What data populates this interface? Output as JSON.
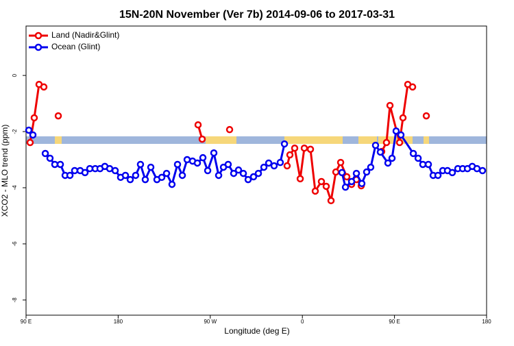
{
  "chart_data": {
    "type": "line",
    "title": "15N-20N November (Ver 7b)   2014-09-06 to 2017-03-31",
    "x_label": "Longitude (deg E)",
    "y_label": "XCO2 - MLO trend (ppm)",
    "xlim": [
      90,
      540
    ],
    "ylim": [
      -8.54,
      1.76
    ],
    "xticks": [
      {
        "value": 90,
        "label": "90 E"
      },
      {
        "value": 180,
        "label": "180"
      },
      {
        "value": 270,
        "label": "90 W"
      },
      {
        "value": 360,
        "label": "0"
      },
      {
        "value": 450,
        "label": "90 E"
      },
      {
        "value": 540,
        "label": "180"
      }
    ],
    "yticks": [
      0,
      -2,
      -4,
      -6,
      -8
    ],
    "legend": "top-left",
    "series": [
      {
        "name": "Land (Nadir&Glint)",
        "color": "#ee0000",
        "x": [
          94.0,
          98.0,
          102.7,
          107.4,
          null,
          121.5,
          null,
          258.1,
          262.1,
          null,
          288.9,
          null,
          345.1,
          347.8,
          352.5,
          357.9,
          361.9,
          367.9,
          372.6,
          378.6,
          383.3,
          388.0,
          392.7,
          397.4,
          403.4,
          408.1,
          412.8,
          417.5,
          null,
          437.5,
          442.2,
          445.6,
          455.0,
          458.3,
          463.0,
          467.7,
          null,
          481.1
        ],
        "values": [
          -2.39,
          -1.51,
          -0.32,
          -0.41,
          null,
          -1.44,
          null,
          -1.76,
          -2.27,
          null,
          -1.93,
          null,
          -3.22,
          -2.83,
          -2.59,
          -3.68,
          -2.59,
          -2.63,
          -4.12,
          -3.78,
          -3.95,
          -4.46,
          -3.44,
          -3.1,
          -3.61,
          -3.88,
          -3.71,
          -3.93,
          null,
          -2.71,
          -2.39,
          -1.07,
          -2.39,
          -1.51,
          -0.32,
          -0.41,
          null,
          -1.44
        ]
      },
      {
        "name": "Ocean (Glint)",
        "color": "#0000ee",
        "x": [
          92.7,
          96.7,
          null,
          108.8,
          113.4,
          118.1,
          123.5,
          128.2,
          132.9,
          137.5,
          142.9,
          147.6,
          152.3,
          157.6,
          162.3,
          167.0,
          171.7,
          177.1,
          182.4,
          187.1,
          191.8,
          197.1,
          201.8,
          206.5,
          211.9,
          217.9,
          222.6,
          227.3,
          232.6,
          238.0,
          242.7,
          247.4,
          252.7,
          257.4,
          262.8,
          267.5,
          273.5,
          278.2,
          282.9,
          287.5,
          292.9,
          297.6,
          302.3,
          307.0,
          312.3,
          317.0,
          322.4,
          327.1,
          332.4,
          338.4,
          342.5,
          null,
          398.7,
          402.1,
          408.1,
          412.8,
          418.1,
          422.8,
          426.8,
          431.5,
          436.2,
          443.6,
          447.6,
          451.6,
          456.3,
          468.4,
          473.1,
          477.7,
          483.1,
          487.8,
          492.5,
          497.2,
          501.8,
          506.5,
          511.9,
          516.6,
          521.3,
          526.0,
          530.6,
          536.0
        ],
        "values": [
          -1.95,
          -2.12,
          null,
          -2.78,
          -2.95,
          -3.17,
          -3.17,
          -3.56,
          -3.56,
          -3.39,
          -3.39,
          -3.46,
          -3.32,
          -3.32,
          -3.32,
          -3.24,
          -3.32,
          -3.39,
          -3.63,
          -3.56,
          -3.71,
          -3.56,
          -3.17,
          -3.71,
          -3.27,
          -3.71,
          -3.63,
          -3.49,
          -3.88,
          -3.17,
          -3.56,
          -3.0,
          -3.05,
          -3.12,
          -2.93,
          -3.39,
          -2.76,
          -3.56,
          -3.27,
          -3.17,
          -3.49,
          -3.37,
          -3.49,
          -3.71,
          -3.61,
          -3.49,
          -3.27,
          -3.12,
          -3.22,
          -3.1,
          -2.44,
          null,
          -3.46,
          -3.98,
          -3.78,
          -3.49,
          -3.85,
          -3.44,
          -3.27,
          -2.49,
          -2.73,
          -3.12,
          -2.95,
          -1.98,
          -2.12,
          -2.78,
          -2.95,
          -3.17,
          -3.17,
          -3.56,
          -3.56,
          -3.39,
          -3.39,
          -3.46,
          -3.32,
          -3.32,
          -3.32,
          -3.24,
          -3.32,
          -3.39
        ]
      }
    ]
  }
}
